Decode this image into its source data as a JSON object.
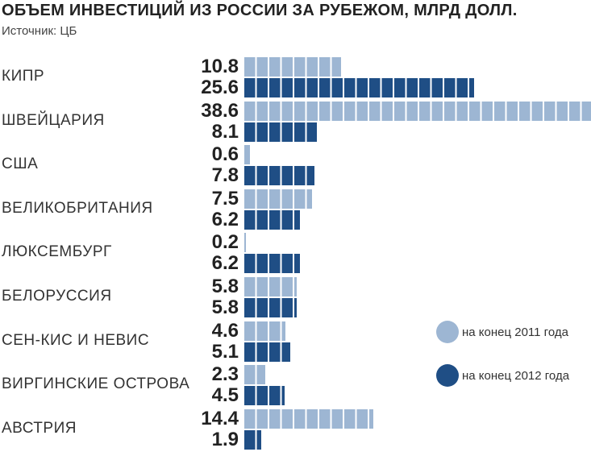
{
  "chart_data": {
    "type": "bar",
    "orientation": "horizontal",
    "title": "ОБЪЕМ ИНВЕСТИЦИЙ ИЗ РОССИИ ЗА РУБЕЖОМ, МЛРД ДОЛЛ.",
    "subtitle": "Источник: ЦБ",
    "categories": [
      "КИПР",
      "ШВЕЙЦАРИЯ",
      "США",
      "ВЕЛИКОБРИТАНИЯ",
      "ЛЮКСЕМБУРГ",
      "БЕЛОРУССИЯ",
      "СЕН-КИС И НЕВИС",
      "ВИРГИНСКИЕ ОСТРОВА",
      "АВСТРИЯ"
    ],
    "series": [
      {
        "name": "на конец 2011 года",
        "color": "#9db6d3",
        "values": [
          10.8,
          38.6,
          0.6,
          7.5,
          0.2,
          5.8,
          4.6,
          2.3,
          14.4
        ]
      },
      {
        "name": "на конец 2012 года",
        "color": "#1f4e85",
        "values": [
          25.6,
          8.1,
          7.8,
          6.2,
          6.2,
          5.8,
          5.1,
          4.5,
          1.9
        ]
      }
    ],
    "xlim": [
      0,
      38.6
    ],
    "grid": false,
    "legend": "right"
  }
}
